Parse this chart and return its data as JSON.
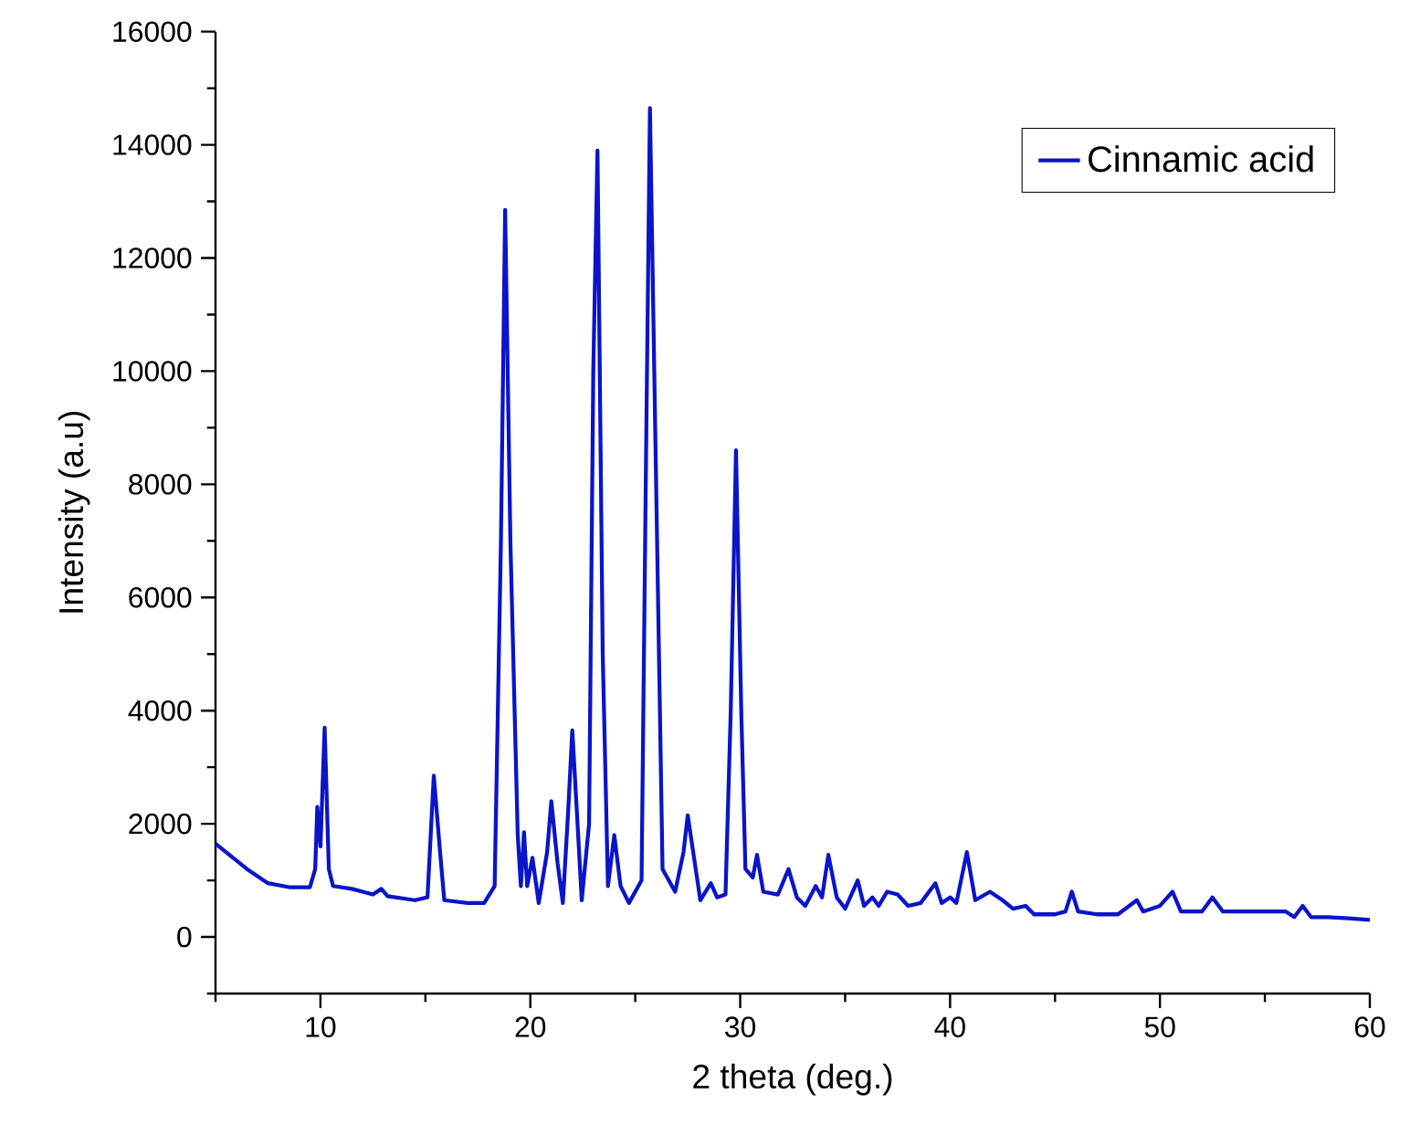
{
  "chart_data": {
    "type": "line",
    "xlabel": "2 theta (deg.)",
    "ylabel": "Intensity (a.u)",
    "xlim": [
      5,
      60
    ],
    "ylim": [
      -1000,
      16000
    ],
    "xticks": [
      {
        "value": 5,
        "label": null
      },
      10,
      {
        "value": 15,
        "label": null
      },
      20,
      {
        "value": 25,
        "label": null
      },
      30,
      {
        "value": 35,
        "label": null
      },
      40,
      {
        "value": 45,
        "label": null
      },
      50,
      {
        "value": 55,
        "label": null
      },
      60
    ],
    "yticks": [
      {
        "value": -1000,
        "label": null
      },
      0,
      {
        "value": 1000,
        "label": null
      },
      2000,
      {
        "value": 3000,
        "label": null
      },
      4000,
      {
        "value": 5000,
        "label": null
      },
      6000,
      {
        "value": 7000,
        "label": null
      },
      8000,
      {
        "value": 9000,
        "label": null
      },
      10000,
      {
        "value": 11000,
        "label": null
      },
      12000,
      {
        "value": 13000,
        "label": null
      },
      14000,
      {
        "value": 15000,
        "label": null
      },
      16000
    ],
    "legend": "top right",
    "grid": false,
    "marker": "none",
    "line_style": "solid",
    "series": [
      {
        "name": "Cinnamic acid",
        "color": "#0a14c8",
        "x": [
          5,
          5.5,
          6.5,
          7.5,
          8.5,
          9.5,
          9.75,
          9.85,
          10.0,
          10.2,
          10.4,
          10.6,
          11.5,
          12.5,
          12.9,
          13.2,
          14.5,
          15.1,
          15.4,
          15.7,
          15.9,
          17,
          17.8,
          18.3,
          18.6,
          18.8,
          19.05,
          19.4,
          19.55,
          19.7,
          19.85,
          20.1,
          20.4,
          20.8,
          21.0,
          21.3,
          21.55,
          21.8,
          22.0,
          22.25,
          22.45,
          22.8,
          23.0,
          23.2,
          23.45,
          23.7,
          24.0,
          24.3,
          24.7,
          25.3,
          25.5,
          25.7,
          25.95,
          26.3,
          26.9,
          27.3,
          27.5,
          27.8,
          28.1,
          28.6,
          28.9,
          29.3,
          29.55,
          29.8,
          30.05,
          30.25,
          30.6,
          30.8,
          31.1,
          31.8,
          32.3,
          32.7,
          33.1,
          33.6,
          33.9,
          34.2,
          34.6,
          35.0,
          35.6,
          35.9,
          36.3,
          36.6,
          37.0,
          37.5,
          38.0,
          38.6,
          39.3,
          39.6,
          40.0,
          40.3,
          40.8,
          41.2,
          41.9,
          42.5,
          43.0,
          43.6,
          44.0,
          45.0,
          45.5,
          45.8,
          46.1,
          47.0,
          48.0,
          48.9,
          49.2,
          50.0,
          50.6,
          51.0,
          52.0,
          52.5,
          53.0,
          54.0,
          55.0,
          56.0,
          56.4,
          56.8,
          57.2,
          58.0,
          59.0,
          60.0
        ],
        "values": [
          1650,
          1500,
          1200,
          950,
          880,
          880,
          1200,
          2300,
          1600,
          3700,
          1200,
          900,
          850,
          750,
          850,
          720,
          650,
          700,
          2850,
          1500,
          650,
          600,
          600,
          900,
          7000,
          12850,
          7000,
          1800,
          900,
          1850,
          900,
          1400,
          600,
          1500,
          2400,
          1300,
          600,
          2200,
          3650,
          2000,
          650,
          2000,
          10000,
          13900,
          5000,
          900,
          1800,
          900,
          600,
          1000,
          8000,
          14650,
          9000,
          1200,
          800,
          1500,
          2150,
          1400,
          650,
          950,
          700,
          750,
          4000,
          8600,
          4000,
          1200,
          1050,
          1450,
          800,
          750,
          1200,
          700,
          550,
          900,
          700,
          1450,
          700,
          500,
          1000,
          550,
          700,
          550,
          800,
          750,
          550,
          600,
          950,
          600,
          700,
          600,
          1500,
          650,
          800,
          650,
          500,
          550,
          400,
          400,
          450,
          800,
          450,
          400,
          400,
          650,
          450,
          550,
          800,
          450,
          450,
          700,
          450,
          450,
          450,
          450,
          350,
          550,
          350,
          350,
          330,
          300
        ]
      }
    ]
  }
}
